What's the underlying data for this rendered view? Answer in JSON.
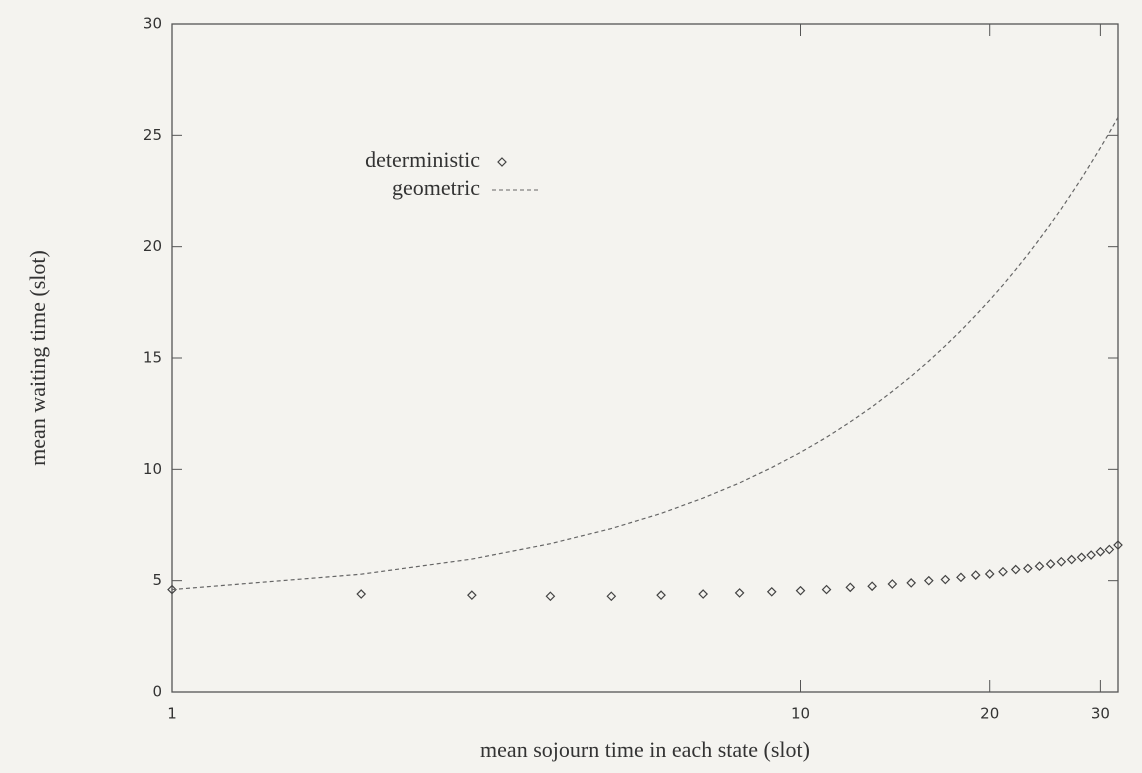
{
  "chart_data": {
    "type": "line",
    "xlabel": "mean sojourn time in each state (slot)",
    "ylabel": "mean waiting time (slot)",
    "x": [
      1,
      2,
      3,
      4,
      5,
      6,
      7,
      8,
      9,
      10,
      11,
      12,
      13,
      14,
      15,
      16,
      17,
      18,
      19,
      20,
      21,
      22,
      23,
      24,
      25,
      26,
      27,
      28,
      29,
      30,
      31,
      32
    ],
    "series": [
      {
        "name": "deterministic",
        "style": "points",
        "color": "#444444",
        "values": [
          4.6,
          4.4,
          4.35,
          4.3,
          4.3,
          4.35,
          4.4,
          4.45,
          4.5,
          4.55,
          4.6,
          4.7,
          4.75,
          4.85,
          4.9,
          5.0,
          5.05,
          5.15,
          5.25,
          5.3,
          5.4,
          5.5,
          5.55,
          5.65,
          5.75,
          5.85,
          5.95,
          6.05,
          6.15,
          6.3,
          6.4,
          6.6
        ]
      },
      {
        "name": "geometric",
        "style": "dashed",
        "color": "#666666",
        "values": [
          4.6,
          5.29,
          5.97,
          6.66,
          7.34,
          8.02,
          8.71,
          9.39,
          10.08,
          10.76,
          11.44,
          12.13,
          12.81,
          13.5,
          14.18,
          14.86,
          15.55,
          16.23,
          16.92,
          17.6,
          18.28,
          18.97,
          19.65,
          20.34,
          21.02,
          21.7,
          22.39,
          23.07,
          23.76,
          24.44,
          25.12,
          25.81
        ]
      }
    ],
    "xlog": true,
    "xlim": [
      1,
      32
    ],
    "xticks": [
      1,
      10,
      20,
      30
    ],
    "ylim": [
      0,
      30
    ],
    "yticks": [
      0,
      5,
      10,
      15,
      20,
      25,
      30
    ]
  }
}
